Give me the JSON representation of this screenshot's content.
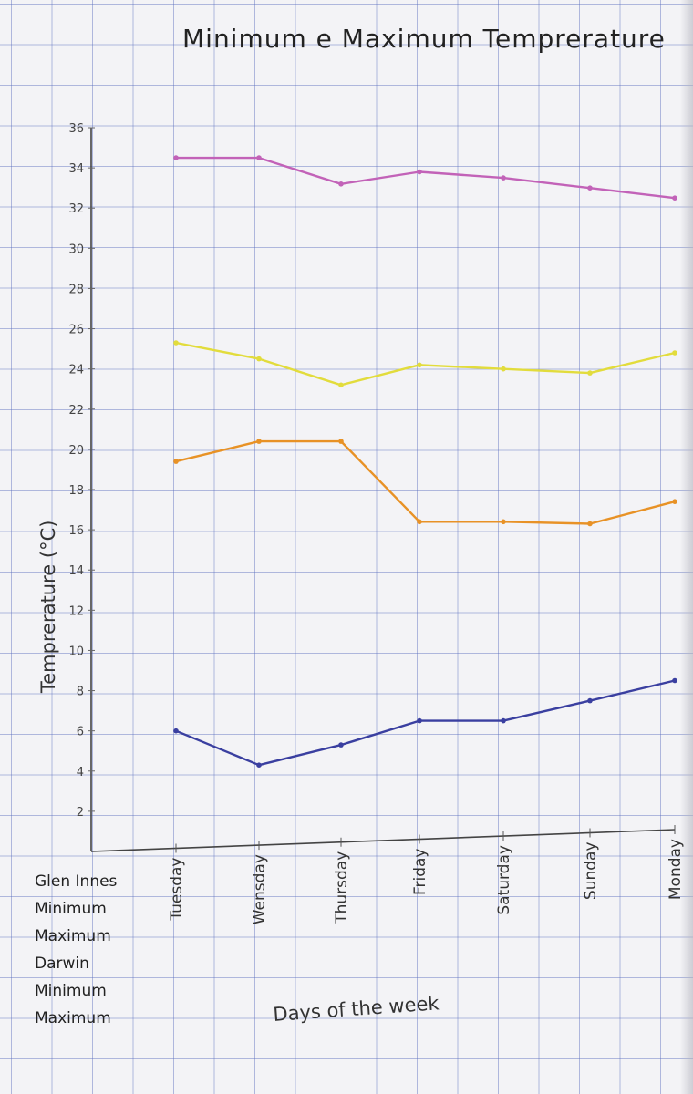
{
  "chart_data": {
    "type": "line",
    "title": "Minimum e Maximum Temprerature",
    "xlabel": "Days of the week",
    "ylabel": "Temprerature (°C)",
    "categories": [
      "Tuesday",
      "Wensday",
      "Thursday",
      "Friday",
      "Saturday",
      "Sunday",
      "Monday"
    ],
    "yticks": [
      "2",
      "4",
      "6",
      "8",
      "10",
      "12",
      "14",
      "16",
      "18",
      "20",
      "22",
      "24",
      "26",
      "28",
      "30",
      "32",
      "34",
      "36"
    ],
    "ylim": [
      0,
      36
    ],
    "grid": true,
    "legend_placement": "bottom-left",
    "legend": {
      "groups": [
        {
          "name": "Glen Innes",
          "entries": [
            {
              "label": "Minimum",
              "color": "#5b4fb0"
            },
            {
              "label": "Maximum",
              "color": "#e8901a"
            }
          ]
        },
        {
          "name": "Darwin",
          "entries": [
            {
              "label": "Minimum",
              "color": "#e6dc3a"
            },
            {
              "label": "Maximum",
              "color": "#c457b0"
            }
          ]
        }
      ]
    },
    "series": [
      {
        "color": "#c262b8",
        "values": [
          34.5,
          34.5,
          33.2,
          33.8,
          33.5,
          33.0,
          32.5
        ]
      },
      {
        "color": "#e2dc3c",
        "values": [
          25.3,
          24.5,
          23.2,
          24.2,
          24.0,
          23.8,
          24.8
        ]
      },
      {
        "color": "#e89226",
        "values": [
          19.4,
          20.4,
          20.4,
          16.4,
          16.4,
          16.3,
          17.4
        ]
      },
      {
        "color": "#3a3fa0",
        "values": [
          6.0,
          4.3,
          5.3,
          6.5,
          6.5,
          7.5,
          8.5
        ]
      }
    ]
  }
}
